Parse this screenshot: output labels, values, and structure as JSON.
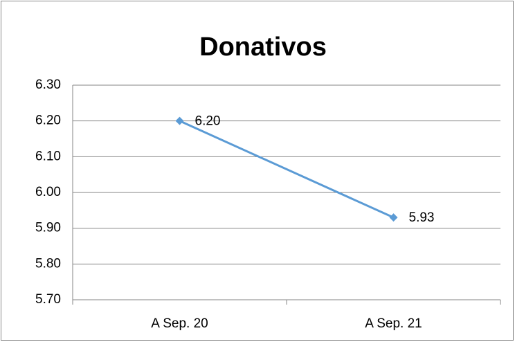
{
  "chart_data": {
    "type": "line",
    "title": "Donativos",
    "categories": [
      "A Sep. 20",
      "A Sep. 21"
    ],
    "values": [
      6.2,
      5.93
    ],
    "value_labels": [
      "6.20",
      "5.93"
    ],
    "color": "#5b9bd5",
    "ylim": [
      5.7,
      6.3
    ],
    "yticks": [
      {
        "value": 5.7,
        "label": "5.70"
      },
      {
        "value": 5.8,
        "label": "5.80"
      },
      {
        "value": 5.9,
        "label": "5.90"
      },
      {
        "value": 6.0,
        "label": "6.00"
      },
      {
        "value": 6.1,
        "label": "6.10"
      },
      {
        "value": 6.2,
        "label": "6.20"
      },
      {
        "value": 6.3,
        "label": "6.30"
      }
    ],
    "grid": true
  }
}
